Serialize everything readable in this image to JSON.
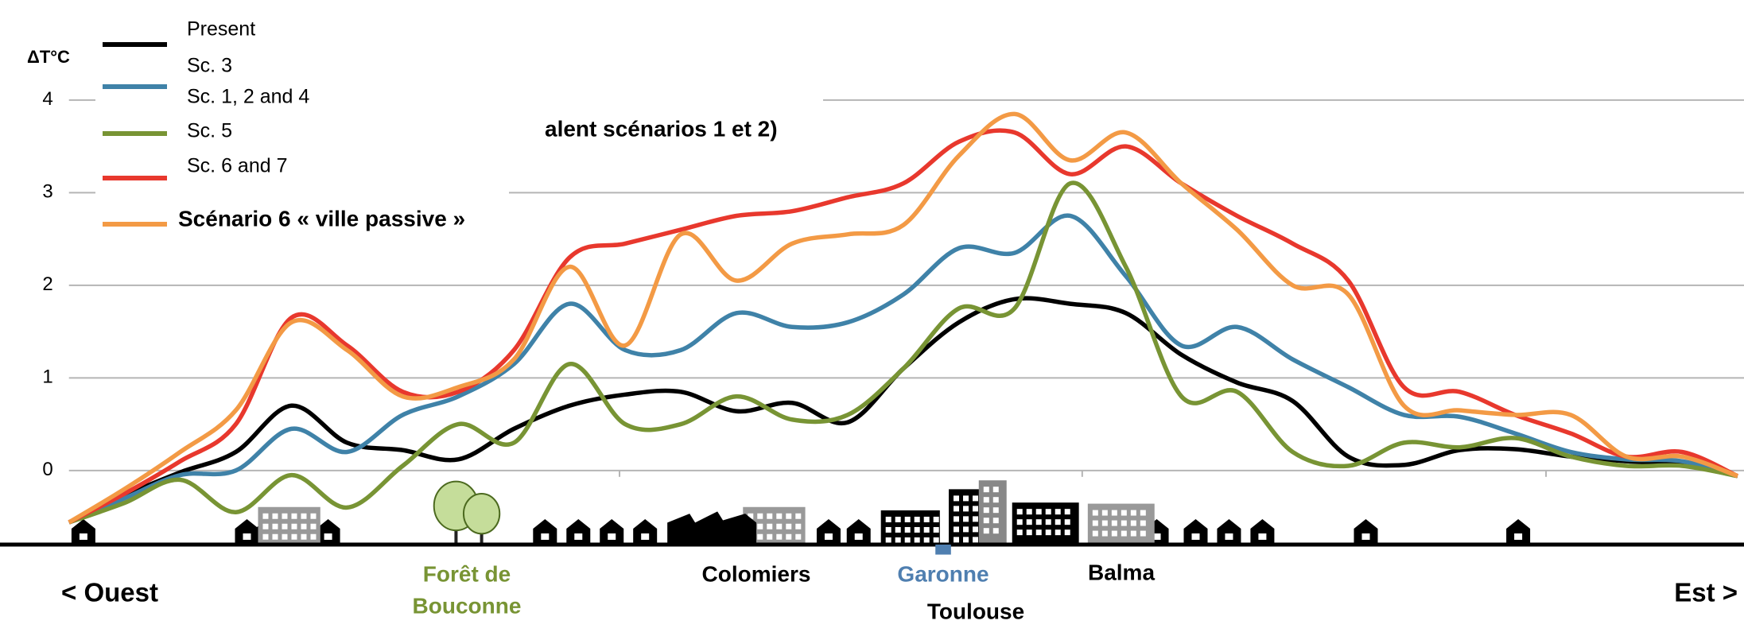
{
  "chart_data": {
    "type": "line",
    "ylabel": "ΔT°C",
    "x": [
      0,
      1,
      2,
      3,
      4,
      5,
      6,
      7,
      8,
      9,
      10,
      11,
      12,
      13,
      14,
      15,
      16,
      17,
      18,
      19,
      20,
      21,
      22,
      23,
      24,
      25,
      26,
      27,
      28,
      29,
      30
    ],
    "xlim": [
      0,
      30
    ],
    "ylim": [
      -0.8,
      4.6
    ],
    "yticks": [
      0,
      1,
      2,
      3,
      4
    ],
    "grid": true,
    "series": [
      {
        "name": "Present",
        "color": "#000000",
        "values": [
          -0.56,
          -0.27,
          -0.02,
          0.2,
          0.7,
          0.3,
          0.22,
          0.12,
          0.45,
          0.7,
          0.82,
          0.85,
          0.64,
          0.73,
          0.52,
          1.1,
          1.6,
          1.85,
          1.8,
          1.7,
          1.25,
          0.95,
          0.75,
          0.15,
          0.06,
          0.22,
          0.23,
          0.15,
          0.1,
          0.06,
          -0.06
        ]
      },
      {
        "name": "Sc. 1, 2 and 4",
        "color": "#3f82a8",
        "values": [
          -0.56,
          -0.3,
          -0.05,
          0.0,
          0.45,
          0.2,
          0.6,
          0.8,
          1.15,
          1.8,
          1.3,
          1.3,
          1.7,
          1.55,
          1.6,
          1.9,
          2.4,
          2.35,
          2.75,
          2.1,
          1.35,
          1.55,
          1.2,
          0.9,
          0.6,
          0.58,
          0.4,
          0.2,
          0.12,
          0.1,
          -0.06
        ]
      },
      {
        "name": "Sc. 5",
        "color": "#789434",
        "values": [
          -0.56,
          -0.35,
          -0.1,
          -0.45,
          -0.05,
          -0.4,
          0.05,
          0.5,
          0.3,
          1.15,
          0.5,
          0.5,
          0.8,
          0.55,
          0.6,
          1.1,
          1.75,
          1.75,
          3.1,
          2.2,
          0.8,
          0.85,
          0.2,
          0.05,
          0.3,
          0.25,
          0.35,
          0.15,
          0.05,
          0.05,
          -0.06
        ]
      },
      {
        "name": "Sc. 6 and 7",
        "color": "#e8382d",
        "values": [
          -0.56,
          -0.25,
          0.1,
          0.5,
          1.65,
          1.35,
          0.85,
          0.85,
          1.3,
          2.3,
          2.45,
          2.6,
          2.75,
          2.8,
          2.95,
          3.1,
          3.55,
          3.65,
          3.2,
          3.5,
          3.1,
          2.75,
          2.45,
          2.05,
          0.9,
          0.85,
          0.6,
          0.4,
          0.15,
          0.2,
          -0.06
        ]
      },
      {
        "name": "Scénario 6 « ville passive »",
        "color": "#f39a45",
        "values": [
          -0.56,
          -0.2,
          0.2,
          0.65,
          1.6,
          1.3,
          0.8,
          0.9,
          1.2,
          2.2,
          1.35,
          2.55,
          2.05,
          2.45,
          2.55,
          2.65,
          3.4,
          3.85,
          3.35,
          3.65,
          3.1,
          2.6,
          2.0,
          1.9,
          0.7,
          0.65,
          0.6,
          0.6,
          0.15,
          0.15,
          -0.06
        ]
      }
    ],
    "annotations": [
      {
        "text": "Sc. 3"
      },
      {
        "text": "alent scénarios 1 et 2)"
      }
    ],
    "place_labels": [
      {
        "text": "< Ouest",
        "color": "#000000"
      },
      {
        "text": "Forêt de",
        "color": "#789434"
      },
      {
        "text": "Bouconne",
        "color": "#789434"
      },
      {
        "text": "Colomiers",
        "color": "#000000"
      },
      {
        "text": "Garonne",
        "color": "#4f7fb0"
      },
      {
        "text": "Toulouse",
        "color": "#000000"
      },
      {
        "text": "Balma",
        "color": "#000000"
      },
      {
        "text": "Est >",
        "color": "#000000"
      }
    ]
  }
}
